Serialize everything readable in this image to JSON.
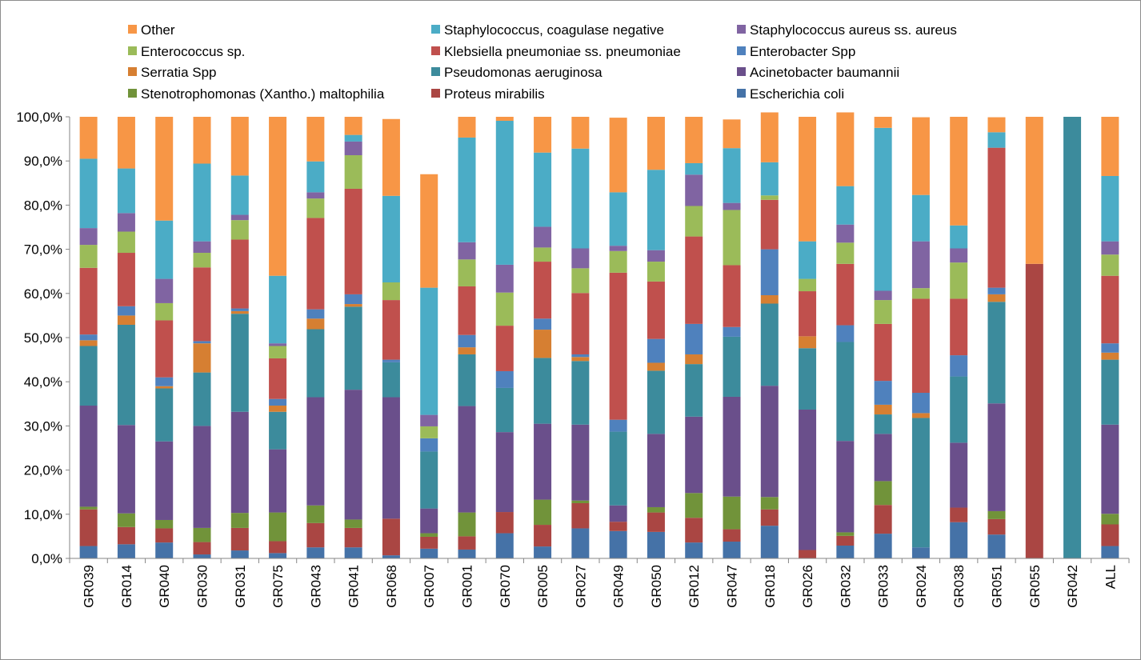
{
  "chart_data": {
    "type": "bar",
    "stacked": "percent",
    "categories": [
      "GR039",
      "GR014",
      "GR040",
      "GR030",
      "GR031",
      "GR075",
      "GR043",
      "GR041",
      "GR068",
      "GR007",
      "GR001",
      "GR070",
      "GR005",
      "GR027",
      "GR049",
      "GR050",
      "GR012",
      "GR047",
      "GR018",
      "GR026",
      "GR032",
      "GR033",
      "GR024",
      "GR038",
      "GR051",
      "GR055",
      "GR042",
      "ALL"
    ],
    "y_tick_labels": [
      "0,0%",
      "10,0%",
      "20,0%",
      "30,0%",
      "40,0%",
      "50,0%",
      "60,0%",
      "70,0%",
      "80,0%",
      "90,0%",
      "100,0%"
    ],
    "ylim": [
      0,
      100
    ],
    "grid": false,
    "legend_position": "top",
    "legend_order": [
      "Other",
      "Staphylococcus, coagulase negative",
      "Staphylococcus aureus ss. aureus",
      "Enterococcus sp.",
      "Klebsiella pneumoniae ss. pneumoniae",
      "Enterobacter Spp",
      "Serratia Spp",
      "Pseudomonas aeruginosa",
      "Acinetobacter baumannii",
      "Stenotrophomonas (Xantho.) maltophilia",
      "Proteus mirabilis",
      "Escherichia coli"
    ],
    "series": [
      {
        "name": "Escherichia coli",
        "color": "#4572A7",
        "values": [
          2.8,
          3.2,
          3.6,
          0.9,
          1.8,
          1.2,
          2.5,
          2.5,
          0.7,
          2.2,
          2.0,
          5.7,
          2.7,
          6.8,
          6.2,
          6.0,
          3.6,
          3.8,
          7.4,
          0,
          2.9,
          5.6,
          2.5,
          8.2,
          5.4,
          0,
          0,
          2.8
        ]
      },
      {
        "name": "Proteus mirabilis",
        "color": "#AA4643",
        "values": [
          8.3,
          3.9,
          3.2,
          2.8,
          5.1,
          2.7,
          5.5,
          4.4,
          8.3,
          2.7,
          3.0,
          4.8,
          4.9,
          5.7,
          2.1,
          4.4,
          5.6,
          2.8,
          3.7,
          1.9,
          2.2,
          6.5,
          0,
          3.3,
          3.5,
          66.7,
          0,
          4.9
        ]
      },
      {
        "name": "Stenotrophomonas (Xantho.) maltophilia",
        "color": "#71933A",
        "values": [
          0.6,
          3.1,
          1.9,
          3.2,
          3.4,
          6.5,
          4.0,
          1.9,
          0,
          0.8,
          5.4,
          0,
          5.7,
          0.6,
          0,
          1.2,
          5.6,
          7.4,
          2.8,
          0,
          0.8,
          5.4,
          0,
          0,
          1.8,
          0,
          0,
          2.4
        ]
      },
      {
        "name": "Acinetobacter baumannii",
        "color": "#6A4F8B",
        "values": [
          22.9,
          20.0,
          17.8,
          23.1,
          22.9,
          14.3,
          24.5,
          29.4,
          27.5,
          5.6,
          24.1,
          18.1,
          17.2,
          17.2,
          3.7,
          16.6,
          17.3,
          22.6,
          25.2,
          31.8,
          20.7,
          10.7,
          0,
          14.7,
          24.4,
          0,
          0,
          20.2
        ]
      },
      {
        "name": "Pseudomonas aeruginosa",
        "color": "#3C8B9C",
        "values": [
          13.5,
          22.7,
          12.0,
          12.1,
          22.2,
          8.5,
          15.4,
          18.8,
          7.9,
          12.9,
          11.7,
          10.0,
          14.9,
          14.4,
          16.7,
          14.3,
          11.9,
          13.6,
          18.6,
          13.9,
          22.4,
          4.4,
          29.3,
          15.0,
          23.0,
          0,
          100,
          14.7
        ]
      },
      {
        "name": "Serratia Spp",
        "color": "#D67F32",
        "values": [
          1.3,
          2.1,
          0.5,
          6.6,
          0.6,
          1.4,
          2.4,
          0.6,
          0,
          0,
          1.6,
          0,
          6.4,
          0.9,
          0,
          1.8,
          2.2,
          0,
          1.9,
          2.7,
          0,
          2.2,
          1.1,
          0,
          1.7,
          0,
          0,
          1.6
        ]
      },
      {
        "name": "Enterobacter Spp",
        "color": "#4F81BD",
        "values": [
          1.3,
          2.1,
          2.0,
          0.5,
          0.6,
          1.5,
          2.1,
          2.2,
          0.6,
          3.0,
          2.8,
          3.8,
          2.5,
          0.6,
          2.7,
          5.4,
          6.9,
          2.2,
          10.4,
          0,
          3.8,
          5.4,
          4.6,
          4.8,
          1.5,
          0,
          0,
          2.1
        ]
      },
      {
        "name": "Klebsiella pneumoniae ss. pneumoniae",
        "color": "#C0504D",
        "values": [
          15.1,
          12.1,
          12.9,
          16.7,
          15.6,
          9.2,
          20.7,
          23.9,
          13.5,
          0,
          11.0,
          10.3,
          12.9,
          13.9,
          33.3,
          13.0,
          19.8,
          14.0,
          11.2,
          10.2,
          13.9,
          12.9,
          21.3,
          12.8,
          31.7,
          0,
          0,
          15.3
        ]
      },
      {
        "name": "Enterococcus sp.",
        "color": "#9BBB59",
        "values": [
          5.2,
          4.8,
          3.9,
          3.3,
          4.4,
          2.8,
          4.4,
          7.6,
          4.0,
          2.7,
          6.1,
          7.5,
          3.2,
          5.6,
          4.9,
          4.5,
          6.9,
          12.5,
          1.0,
          2.8,
          4.8,
          5.4,
          2.4,
          8.2,
          0,
          0,
          0,
          4.8
        ]
      },
      {
        "name": "Staphylococcus aureus ss. aureus",
        "color": "#8064A2",
        "values": [
          3.8,
          4.2,
          5.5,
          2.6,
          1.2,
          0.6,
          1.4,
          3.1,
          0,
          2.6,
          3.9,
          6.3,
          4.7,
          4.5,
          1.2,
          2.6,
          7.1,
          1.6,
          0,
          0,
          4.1,
          2.1,
          10.6,
          3.2,
          0,
          0,
          0,
          3.0
        ]
      },
      {
        "name": "Staphylococcus, coagulase negative",
        "color": "#4BACC6",
        "values": [
          15.7,
          10.1,
          13.2,
          17.6,
          8.9,
          15.3,
          7.0,
          1.5,
          19.6,
          28.8,
          23.7,
          32.6,
          16.8,
          22.6,
          12.1,
          18.2,
          2.6,
          12.4,
          7.5,
          8.5,
          8.7,
          36.9,
          10.5,
          5.2,
          3.5,
          0,
          0,
          14.8
        ]
      },
      {
        "name": "Other",
        "color": "#F79646",
        "values": [
          9.5,
          11.7,
          23.5,
          10.6,
          13.3,
          36.0,
          10.1,
          4.1,
          17.4,
          25.7,
          4.7,
          0.9,
          8.1,
          7.2,
          16.9,
          12.0,
          10.5,
          6.5,
          11.3,
          28.2,
          16.7,
          2.5,
          17.6,
          24.6,
          3.4,
          33.3,
          0,
          13.4
        ]
      }
    ]
  }
}
